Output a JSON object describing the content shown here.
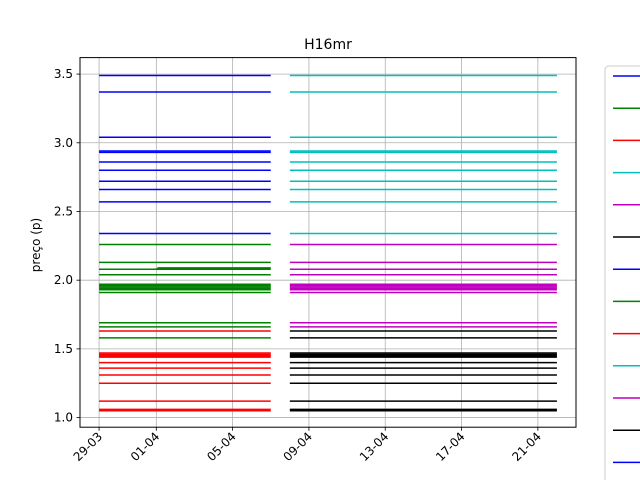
{
  "chart_data": {
    "type": "line",
    "title": "H16mr",
    "xlabel": "",
    "ylabel": "preço (p)",
    "grid": true,
    "legend": "right (partially cut off, labels not visible)",
    "x_axis": {
      "type": "date",
      "range": [
        "2020-03-28",
        "2020-04-23"
      ],
      "tick_values": [
        "2020-03-29",
        "2020-04-01",
        "2020-04-05",
        "2020-04-09",
        "2020-04-13",
        "2020-04-17",
        "2020-04-21"
      ],
      "tick_labels": [
        "29-03",
        "01-04",
        "05-04",
        "09-04",
        "13-04",
        "17-04",
        "21-04"
      ]
    },
    "y_axis": {
      "range": [
        0.93,
        3.62
      ],
      "ticks": [
        1.0,
        1.5,
        2.0,
        2.5,
        3.0,
        3.5
      ],
      "tick_labels": [
        "1.0",
        "1.5",
        "2.0",
        "2.5",
        "3.0",
        "3.5"
      ]
    },
    "periods": [
      {
        "x": [
          "2020-03-29",
          "2020-04-07"
        ]
      },
      {
        "x": [
          "2020-04-08",
          "2020-04-22"
        ]
      }
    ],
    "series": [
      {
        "color": "#0000ff",
        "period": 0,
        "levels": [
          3.49,
          3.37,
          3.04,
          2.94,
          2.93,
          2.86,
          2.8,
          2.72,
          2.66,
          2.57,
          2.34
        ]
      },
      {
        "color": "#008000",
        "period": 0,
        "levels": [
          2.26,
          2.13,
          2.08,
          2.04,
          1.97,
          1.96,
          1.95,
          1.94,
          1.93,
          1.91,
          1.69,
          1.66,
          1.58
        ]
      },
      {
        "color": "#ff0000",
        "period": 0,
        "levels": [
          1.63,
          1.47,
          1.46,
          1.45,
          1.44,
          1.4,
          1.36,
          1.31,
          1.25,
          1.12,
          1.06,
          1.05
        ]
      },
      {
        "color": "#00bfbf",
        "period": 1,
        "levels": [
          3.49,
          3.37,
          3.04,
          2.94,
          2.93,
          2.86,
          2.8,
          2.72,
          2.66,
          2.57,
          2.34
        ]
      },
      {
        "color": "#bf00bf",
        "period": 1,
        "levels": [
          2.26,
          2.13,
          2.08,
          2.04,
          1.97,
          1.96,
          1.95,
          1.94,
          1.93,
          1.91,
          1.69,
          1.66
        ]
      },
      {
        "color": "#000000",
        "period": 1,
        "levels": [
          1.63,
          1.58,
          1.47,
          1.46,
          1.45,
          1.44,
          1.4,
          1.36,
          1.31,
          1.25,
          1.12,
          1.06,
          1.05
        ]
      }
    ],
    "step_marks": [
      {
        "color": "#008000",
        "x": [
          "2020-03-29",
          "2020-04-07"
        ],
        "from": 2.08,
        "to": 2.09,
        "step_at": "2020-04-01"
      }
    ],
    "legend_colors": [
      "#0000ff",
      "#008000",
      "#ff0000",
      "#00bfbf",
      "#bf00bf",
      "#000000",
      "#0000ff",
      "#008000",
      "#ff0000",
      "#00bfbf",
      "#bf00bf",
      "#000000",
      "#0000ff"
    ]
  }
}
